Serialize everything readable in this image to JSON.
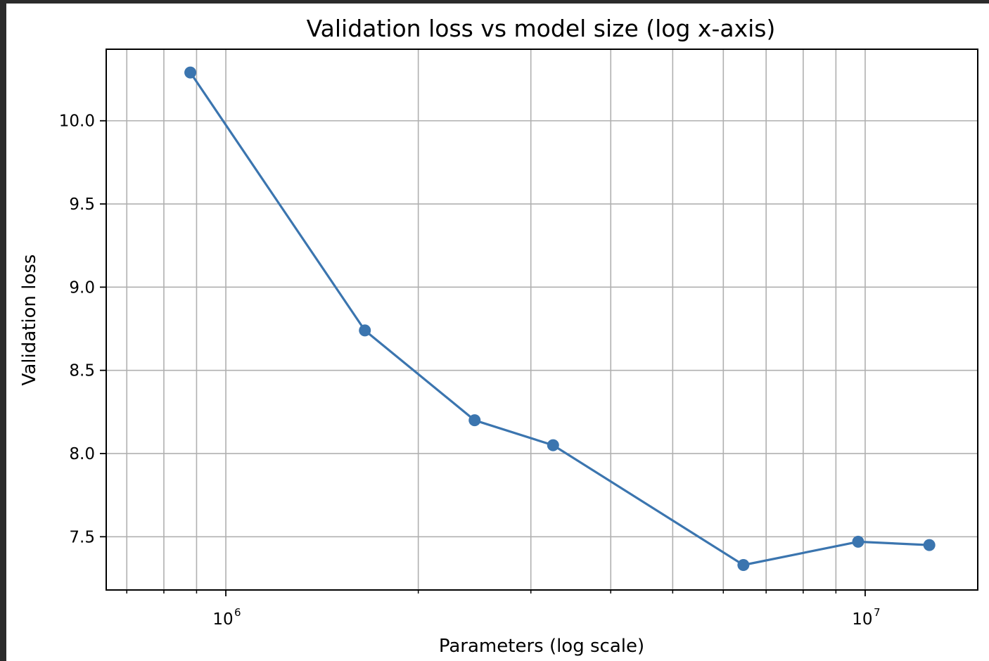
{
  "chart_data": {
    "type": "line",
    "title": "Validation loss vs model size (log x-axis)",
    "xlabel": "Parameters (log scale)",
    "ylabel": "Validation loss",
    "xscale": "log",
    "xlim": [
      650000,
      15000000
    ],
    "ylim": [
      7.18,
      10.43
    ],
    "grid": true,
    "grid_which": "both",
    "color": "#3b75af",
    "x_ticks": [
      {
        "value": 1000000,
        "base": "10",
        "exp": "6"
      },
      {
        "value": 10000000,
        "base": "10",
        "exp": "7"
      }
    ],
    "y_ticks": [
      {
        "value": 7.5,
        "label": "7.5"
      },
      {
        "value": 8.0,
        "label": "8.0"
      },
      {
        "value": 8.5,
        "label": "8.5"
      },
      {
        "value": 9.0,
        "label": "9.0"
      },
      {
        "value": 9.5,
        "label": "9.5"
      },
      {
        "value": 10.0,
        "label": "10.0"
      }
    ],
    "minor_x_ticks": [
      700000,
      800000,
      900000,
      2000000,
      3000000,
      4000000,
      5000000,
      6000000,
      7000000,
      8000000,
      9000000
    ],
    "series": [
      {
        "x": [
          880000,
          1650000,
          2450000,
          3250000,
          6450000,
          9750000,
          12600000
        ],
        "y": [
          10.29,
          8.74,
          8.2,
          8.05,
          7.33,
          7.47,
          7.45
        ]
      }
    ]
  }
}
